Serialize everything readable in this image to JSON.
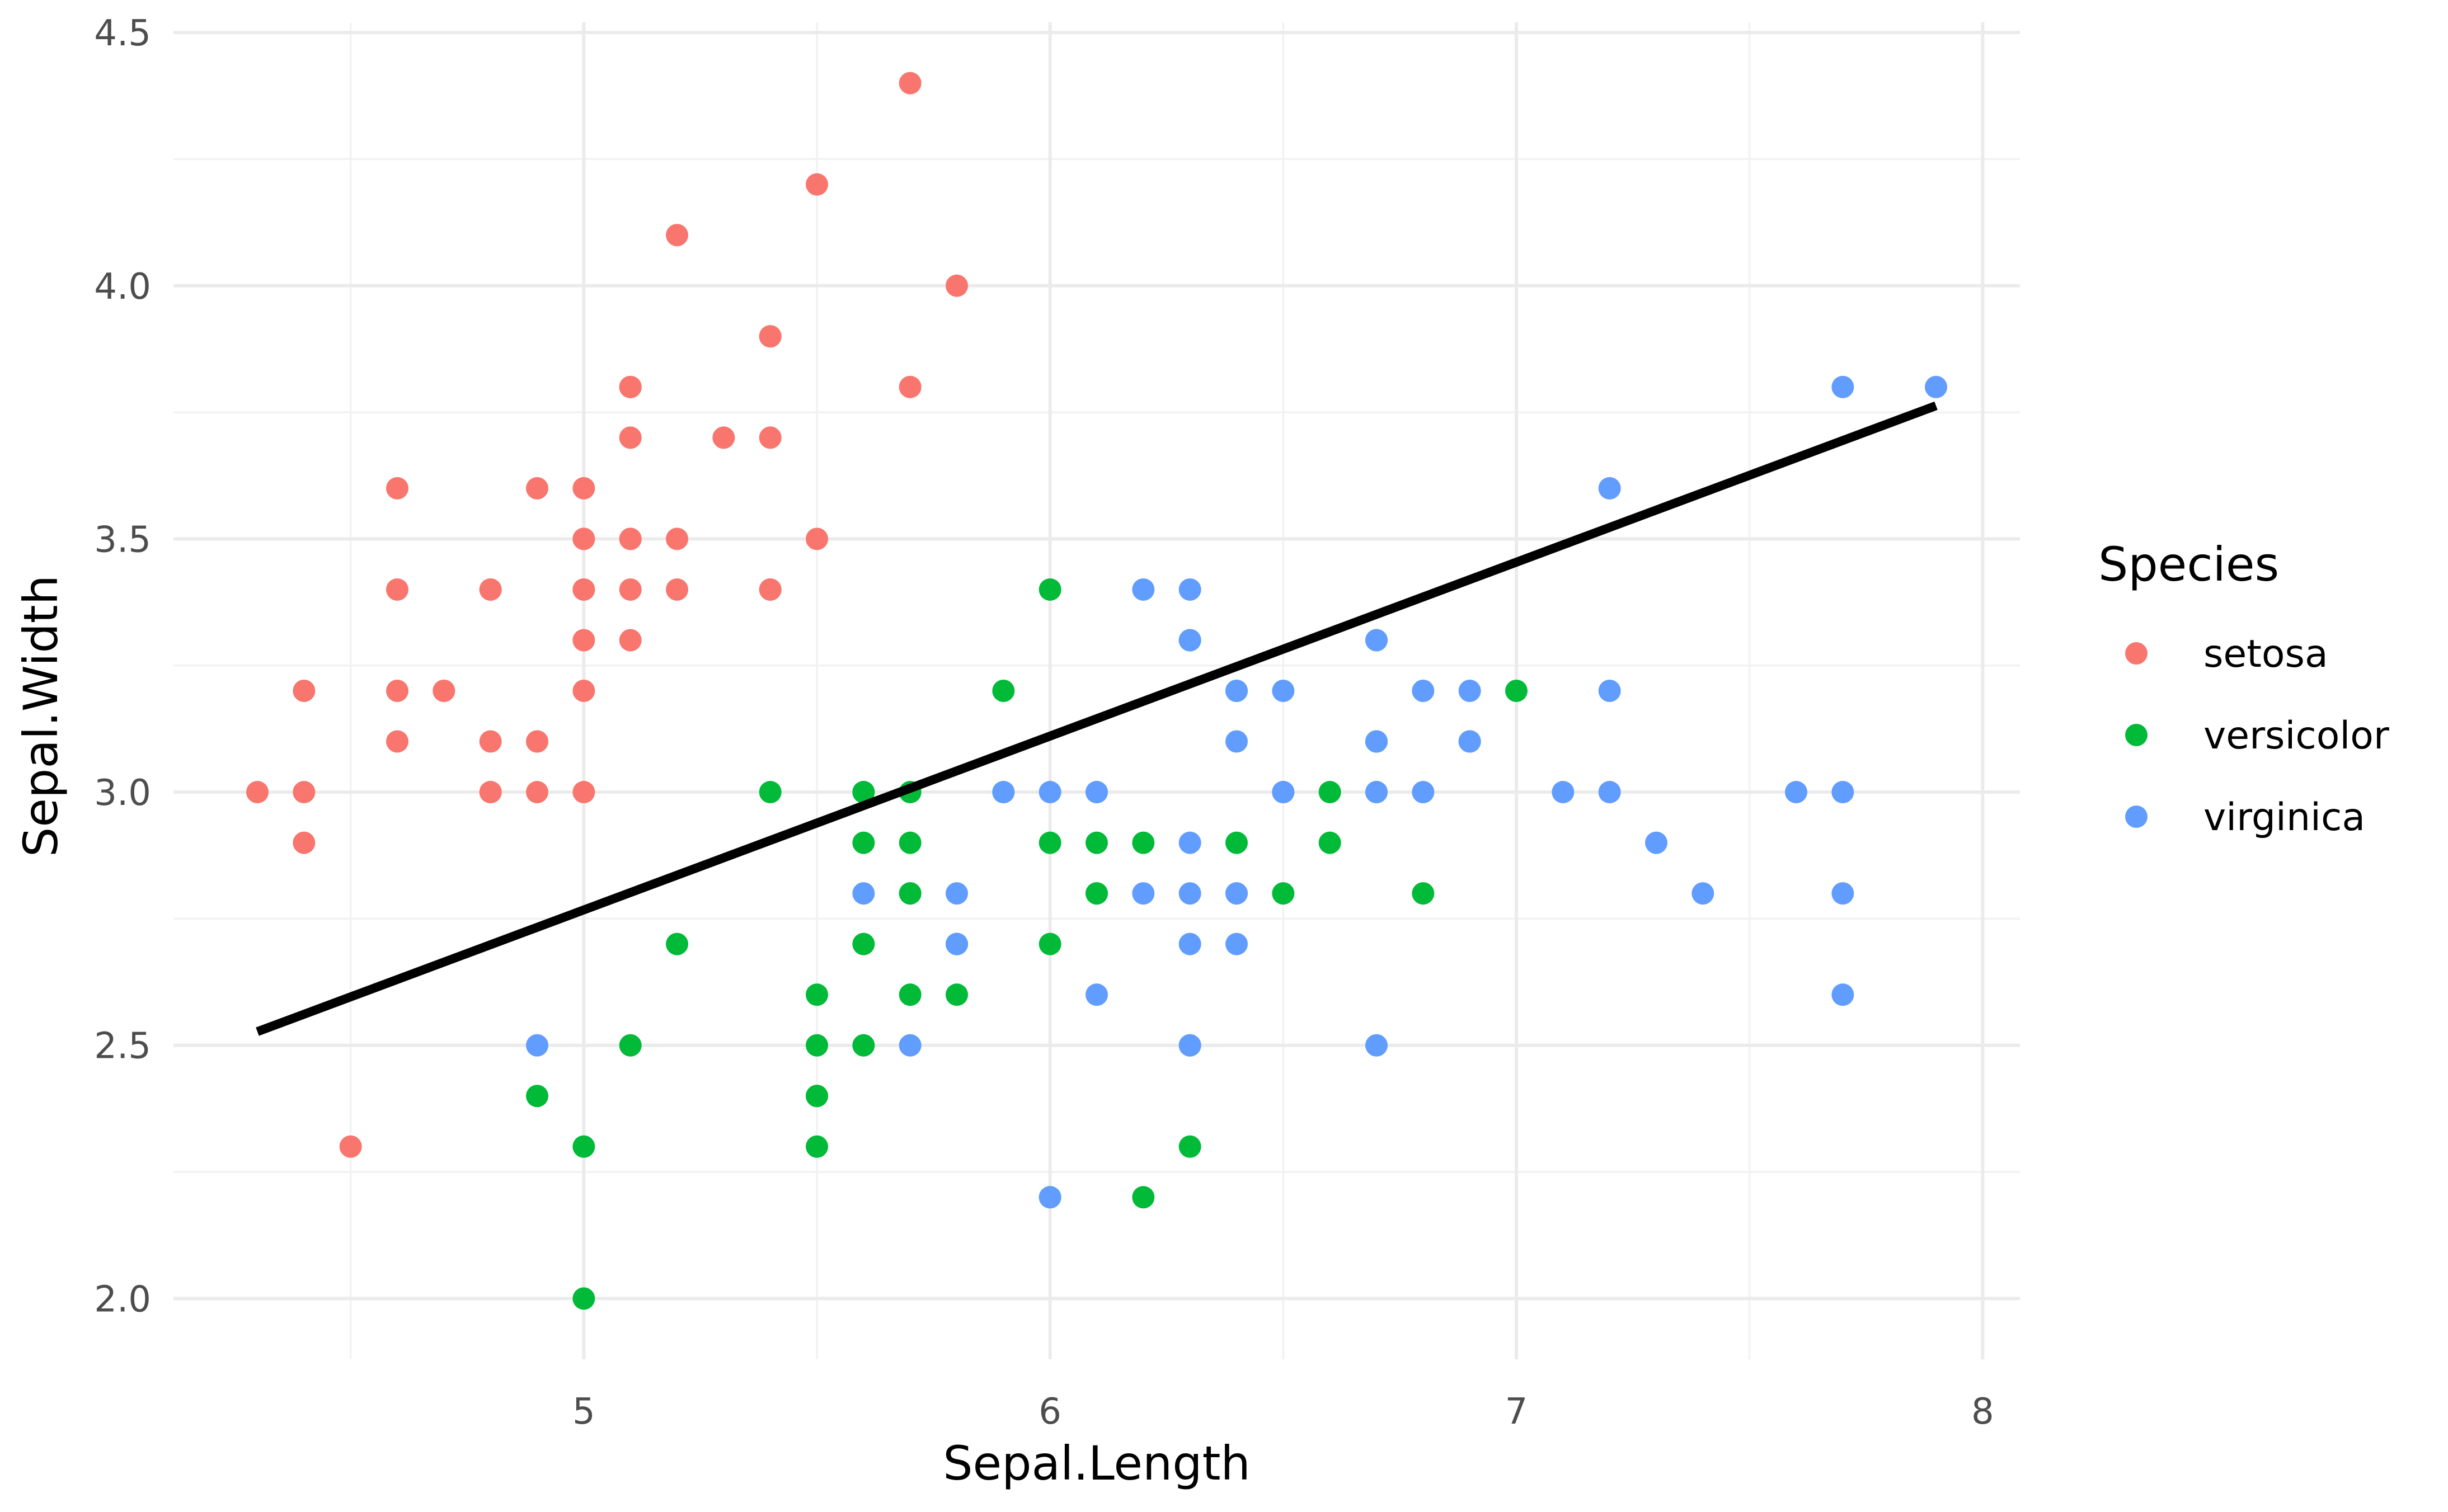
{
  "chart_data": {
    "type": "scatter",
    "xlabel": "Sepal.Length",
    "ylabel": "Sepal.Width",
    "xlim": [
      4.12,
      8.08
    ],
    "ylim": [
      1.88,
      4.52
    ],
    "x_ticks": [
      5,
      6,
      7,
      8
    ],
    "x_tick_labels": [
      "5",
      "6",
      "7",
      "8"
    ],
    "y_ticks": [
      2.0,
      2.5,
      3.0,
      3.5,
      4.0,
      4.5
    ],
    "y_tick_labels": [
      "2.0",
      "2.5",
      "3.0",
      "3.5",
      "4.0",
      "4.5"
    ],
    "grid": true,
    "legend": {
      "title": "Species",
      "position": "right"
    },
    "trend_line": {
      "type": "linear",
      "color": "#000000",
      "points": [
        [
          4.3,
          2.527
        ],
        [
          7.9,
          3.763
        ]
      ]
    },
    "series": [
      {
        "name": "setosa",
        "color": "#F8766D",
        "points": [
          [
            5.1,
            3.5
          ],
          [
            4.9,
            3.0
          ],
          [
            4.7,
            3.2
          ],
          [
            4.6,
            3.1
          ],
          [
            5.0,
            3.6
          ],
          [
            5.4,
            3.9
          ],
          [
            4.6,
            3.4
          ],
          [
            5.0,
            3.4
          ],
          [
            4.4,
            2.9
          ],
          [
            4.9,
            3.1
          ],
          [
            5.4,
            3.7
          ],
          [
            4.8,
            3.4
          ],
          [
            4.8,
            3.0
          ],
          [
            4.3,
            3.0
          ],
          [
            5.8,
            4.0
          ],
          [
            5.7,
            4.4
          ],
          [
            5.4,
            3.9
          ],
          [
            5.1,
            3.5
          ],
          [
            5.7,
            3.8
          ],
          [
            5.1,
            3.8
          ],
          [
            5.4,
            3.4
          ],
          [
            5.1,
            3.7
          ],
          [
            4.6,
            3.6
          ],
          [
            5.1,
            3.3
          ],
          [
            4.8,
            3.4
          ],
          [
            5.0,
            3.0
          ],
          [
            5.0,
            3.4
          ],
          [
            5.2,
            3.5
          ],
          [
            5.2,
            3.4
          ],
          [
            4.7,
            3.2
          ],
          [
            4.8,
            3.1
          ],
          [
            5.4,
            3.4
          ],
          [
            5.2,
            4.1
          ],
          [
            5.5,
            4.2
          ],
          [
            4.9,
            3.1
          ],
          [
            5.0,
            3.2
          ],
          [
            5.5,
            3.5
          ],
          [
            4.9,
            3.6
          ],
          [
            4.4,
            3.0
          ],
          [
            5.1,
            3.4
          ],
          [
            5.0,
            3.5
          ],
          [
            4.5,
            2.3
          ],
          [
            4.4,
            3.2
          ],
          [
            5.0,
            3.5
          ],
          [
            5.1,
            3.8
          ],
          [
            4.8,
            3.0
          ],
          [
            5.1,
            3.8
          ],
          [
            4.6,
            3.2
          ],
          [
            5.3,
            3.7
          ],
          [
            5.0,
            3.3
          ]
        ]
      },
      {
        "name": "versicolor",
        "color": "#00BA38",
        "points": [
          [
            7.0,
            3.2
          ],
          [
            6.4,
            3.2
          ],
          [
            6.9,
            3.1
          ],
          [
            5.5,
            2.3
          ],
          [
            6.5,
            2.8
          ],
          [
            5.7,
            2.8
          ],
          [
            6.3,
            3.3
          ],
          [
            4.9,
            2.4
          ],
          [
            6.6,
            2.9
          ],
          [
            5.2,
            2.7
          ],
          [
            5.0,
            2.0
          ],
          [
            5.9,
            3.0
          ],
          [
            6.0,
            2.2
          ],
          [
            6.1,
            2.9
          ],
          [
            5.6,
            2.9
          ],
          [
            6.7,
            3.1
          ],
          [
            5.6,
            3.0
          ],
          [
            5.8,
            2.7
          ],
          [
            6.2,
            2.2
          ],
          [
            5.6,
            2.5
          ],
          [
            5.9,
            3.2
          ],
          [
            6.1,
            2.8
          ],
          [
            6.3,
            2.5
          ],
          [
            6.1,
            2.8
          ],
          [
            6.4,
            2.9
          ],
          [
            6.6,
            3.0
          ],
          [
            6.8,
            2.8
          ],
          [
            6.7,
            3.0
          ],
          [
            6.0,
            2.9
          ],
          [
            5.7,
            2.6
          ],
          [
            5.5,
            2.4
          ],
          [
            5.5,
            2.4
          ],
          [
            5.8,
            2.7
          ],
          [
            6.0,
            2.7
          ],
          [
            5.4,
            3.0
          ],
          [
            6.0,
            3.4
          ],
          [
            6.7,
            3.1
          ],
          [
            6.3,
            2.3
          ],
          [
            5.6,
            3.0
          ],
          [
            5.5,
            2.5
          ],
          [
            5.5,
            2.6
          ],
          [
            6.1,
            3.0
          ],
          [
            5.8,
            2.6
          ],
          [
            5.0,
            2.3
          ],
          [
            5.6,
            2.7
          ],
          [
            5.7,
            3.0
          ],
          [
            5.7,
            2.9
          ],
          [
            6.2,
            2.9
          ],
          [
            5.1,
            2.5
          ],
          [
            5.7,
            2.8
          ]
        ]
      },
      {
        "name": "virginica",
        "color": "#619CFF",
        "points": [
          [
            6.3,
            3.3
          ],
          [
            5.8,
            2.7
          ],
          [
            7.1,
            3.0
          ],
          [
            6.3,
            2.9
          ],
          [
            6.5,
            3.0
          ],
          [
            7.6,
            3.0
          ],
          [
            4.9,
            2.5
          ],
          [
            7.3,
            2.9
          ],
          [
            6.7,
            2.5
          ],
          [
            7.2,
            3.6
          ],
          [
            6.5,
            3.2
          ],
          [
            6.4,
            2.7
          ],
          [
            6.8,
            3.0
          ],
          [
            5.7,
            2.5
          ],
          [
            5.8,
            2.8
          ],
          [
            6.4,
            3.2
          ],
          [
            6.5,
            3.0
          ],
          [
            7.7,
            3.8
          ],
          [
            7.7,
            2.6
          ],
          [
            6.0,
            2.2
          ],
          [
            6.9,
            3.2
          ],
          [
            5.6,
            2.8
          ],
          [
            7.7,
            2.8
          ],
          [
            6.3,
            2.7
          ],
          [
            6.7,
            3.3
          ],
          [
            7.2,
            3.2
          ],
          [
            6.2,
            2.8
          ],
          [
            6.1,
            3.0
          ],
          [
            6.4,
            2.8
          ],
          [
            7.2,
            3.0
          ],
          [
            7.4,
            2.8
          ],
          [
            7.9,
            3.8
          ],
          [
            6.4,
            2.8
          ],
          [
            6.3,
            2.8
          ],
          [
            6.1,
            2.6
          ],
          [
            7.7,
            3.0
          ],
          [
            6.3,
            3.4
          ],
          [
            6.4,
            3.1
          ],
          [
            6.0,
            3.0
          ],
          [
            6.9,
            3.1
          ],
          [
            6.7,
            3.1
          ],
          [
            6.9,
            3.1
          ],
          [
            5.8,
            2.7
          ],
          [
            6.8,
            3.2
          ],
          [
            6.7,
            3.3
          ],
          [
            6.7,
            3.0
          ],
          [
            6.3,
            2.5
          ],
          [
            6.5,
            3.0
          ],
          [
            6.2,
            3.4
          ],
          [
            5.9,
            3.0
          ]
        ]
      }
    ]
  }
}
